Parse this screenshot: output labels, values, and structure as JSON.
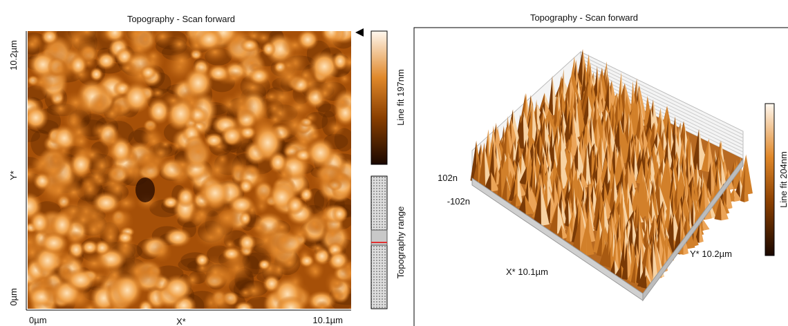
{
  "left_panel": {
    "title": "Topography - Scan forward",
    "y_axis": {
      "top": "10.2µm",
      "label": "Y*",
      "bottom": "0µm"
    },
    "x_axis": {
      "left": "0µm",
      "label": "X*",
      "right": "10.1µm"
    },
    "colorbar_label": "Line fit 197nm",
    "range_label": "Topography range"
  },
  "right_panel": {
    "title": "Topography - Scan forward",
    "z_top": "102n",
    "z_bottom": "-102n",
    "x_label": "X* 10.1µm",
    "y_label": "Y* 10.2µm",
    "colorbar_label": "Line fit 204nm"
  }
}
